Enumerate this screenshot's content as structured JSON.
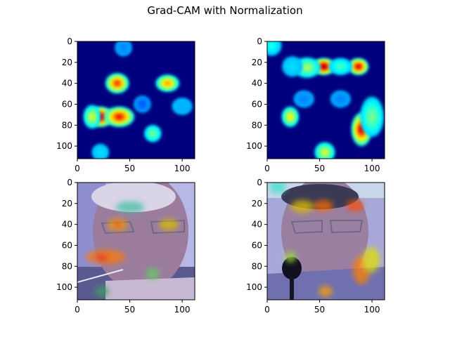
{
  "figure": {
    "title": "Grad-CAM with Normalization"
  },
  "chart_data": [
    {
      "type": "heatmap",
      "panel": "top-left",
      "content": "grad-cam heatmap",
      "colormap": "jet",
      "xlim": [
        0,
        112
      ],
      "ylim": [
        112,
        0
      ],
      "xticks": [
        0,
        50,
        100
      ],
      "yticks": [
        0,
        20,
        40,
        60,
        80,
        100
      ],
      "hotspots": [
        {
          "x": 38,
          "y": 40,
          "sx": 7,
          "sy": 6,
          "v": 0.85
        },
        {
          "x": 86,
          "y": 40,
          "sx": 7,
          "sy": 5,
          "v": 0.75
        },
        {
          "x": 22,
          "y": 72,
          "sx": 8,
          "sy": 6,
          "v": 1.0
        },
        {
          "x": 40,
          "y": 72,
          "sx": 9,
          "sy": 6,
          "v": 0.9
        },
        {
          "x": 14,
          "y": 72,
          "sx": 5,
          "sy": 7,
          "v": 0.6
        },
        {
          "x": 72,
          "y": 88,
          "sx": 5,
          "sy": 5,
          "v": 0.5
        },
        {
          "x": 22,
          "y": 106,
          "sx": 5,
          "sy": 5,
          "v": 0.35
        },
        {
          "x": 44,
          "y": 6,
          "sx": 5,
          "sy": 5,
          "v": 0.25
        },
        {
          "x": 62,
          "y": 60,
          "sx": 5,
          "sy": 5,
          "v": 0.2
        },
        {
          "x": 100,
          "y": 62,
          "sx": 6,
          "sy": 5,
          "v": 0.3
        }
      ]
    },
    {
      "type": "heatmap",
      "panel": "top-right",
      "content": "grad-cam heatmap",
      "colormap": "jet",
      "xlim": [
        0,
        112
      ],
      "ylim": [
        112,
        0
      ],
      "xticks": [
        0,
        50,
        100
      ],
      "yticks": [
        0,
        20,
        40,
        60,
        80,
        100
      ],
      "hotspots": [
        {
          "x": 54,
          "y": 24,
          "sx": 7,
          "sy": 5,
          "v": 1.0
        },
        {
          "x": 87,
          "y": 24,
          "sx": 6,
          "sy": 5,
          "v": 0.95
        },
        {
          "x": 38,
          "y": 25,
          "sx": 8,
          "sy": 6,
          "v": 0.55
        },
        {
          "x": 70,
          "y": 24,
          "sx": 7,
          "sy": 5,
          "v": 0.45
        },
        {
          "x": 24,
          "y": 24,
          "sx": 6,
          "sy": 6,
          "v": 0.35
        },
        {
          "x": 4,
          "y": 4,
          "sx": 6,
          "sy": 6,
          "v": 0.4
        },
        {
          "x": 22,
          "y": 72,
          "sx": 5,
          "sy": 6,
          "v": 0.65
        },
        {
          "x": 90,
          "y": 84,
          "sx": 6,
          "sy": 10,
          "v": 0.95
        },
        {
          "x": 100,
          "y": 72,
          "sx": 7,
          "sy": 12,
          "v": 0.5
        },
        {
          "x": 55,
          "y": 106,
          "sx": 6,
          "sy": 6,
          "v": 0.6
        },
        {
          "x": 35,
          "y": 55,
          "sx": 6,
          "sy": 5,
          "v": 0.25
        },
        {
          "x": 70,
          "y": 55,
          "sx": 6,
          "sy": 5,
          "v": 0.25
        }
      ]
    },
    {
      "type": "heatmap",
      "panel": "bottom-left",
      "content": "heatmap overlaid on face photo",
      "overlay": true,
      "xlim": [
        0,
        112
      ],
      "ylim": [
        112,
        0
      ],
      "xticks": [
        0,
        50,
        100
      ],
      "yticks": [
        0,
        20,
        40,
        60,
        80,
        100
      ]
    },
    {
      "type": "heatmap",
      "panel": "bottom-right",
      "content": "heatmap overlaid on face photo with microphone",
      "overlay": true,
      "xlim": [
        0,
        112
      ],
      "ylim": [
        112,
        0
      ],
      "xticks": [
        0,
        50,
        100
      ],
      "yticks": [
        0,
        20,
        40,
        60,
        80,
        100
      ]
    }
  ]
}
